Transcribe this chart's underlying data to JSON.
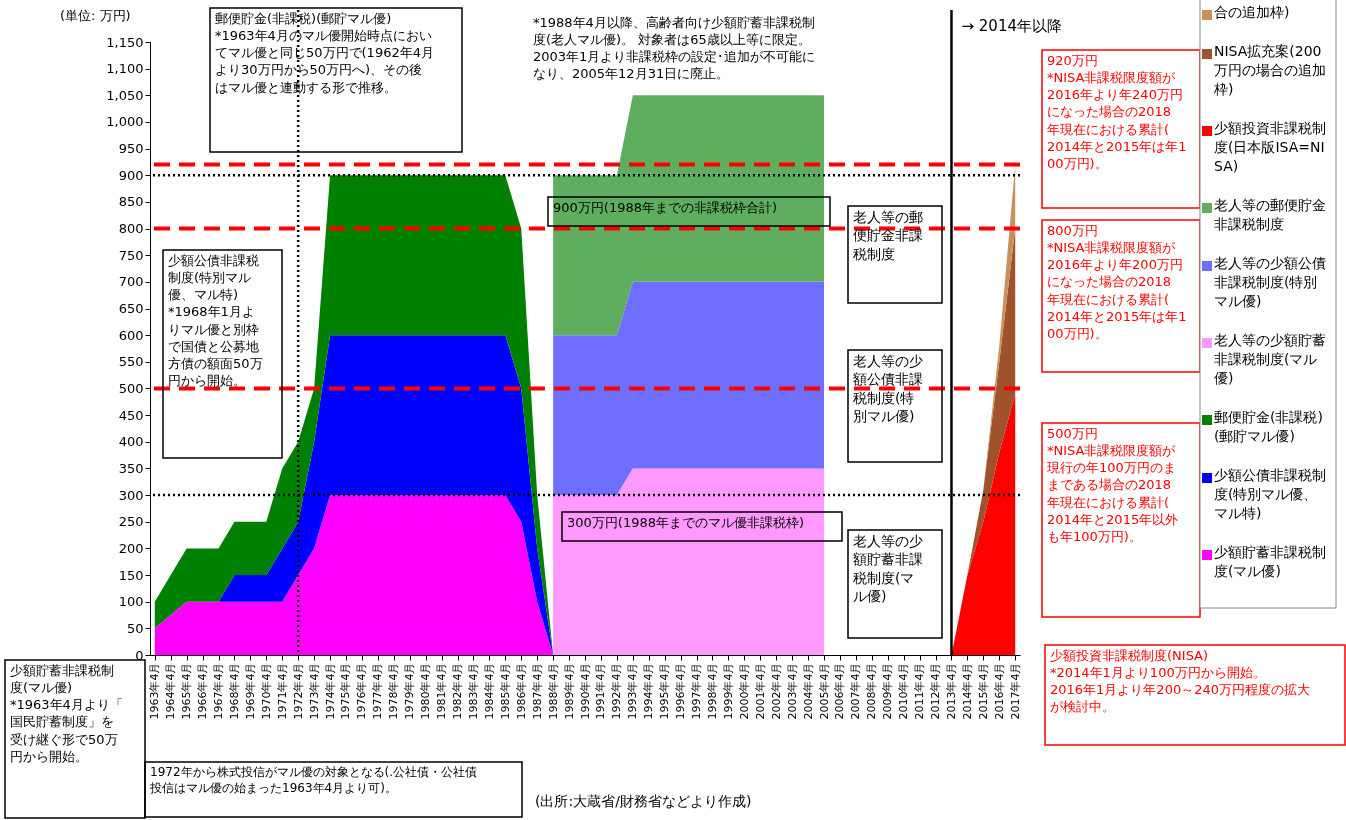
{
  "chart_data": {
    "type": "area",
    "stacked": true,
    "legend": "right",
    "ylabel": "(単位: 万円)",
    "categories": [
      "1963年4月",
      "1964年4月",
      "1965年4月",
      "1966年4月",
      "1967年4月",
      "1968年4月",
      "1969年4月",
      "1970年4月",
      "1971年4月",
      "1972年4月",
      "1973年4月",
      "1974年4月",
      "1975年4月",
      "1976年4月",
      "1977年4月",
      "1978年4月",
      "1979年4月",
      "1980年4月",
      "1981年4月",
      "1982年4月",
      "1983年4月",
      "1984年4月",
      "1985年4月",
      "1986年4月",
      "1987年4月",
      "1988年4月",
      "1989年4月",
      "1990年4月",
      "1991年4月",
      "1992年4月",
      "1993年4月",
      "1994年4月",
      "1995年4月",
      "1996年4月",
      "1997年4月",
      "1998年4月",
      "1999年4月",
      "2000年4月",
      "2001年4月",
      "2002年4月",
      "2003年4月",
      "2004年4月",
      "2005年4月",
      "2006年4月",
      "2007年4月",
      "2008年4月",
      "2009年4月",
      "2010年4月",
      "2011年4月",
      "2012年4月",
      "2013年4月",
      "2014年4月",
      "2015年4月",
      "2016年4月",
      "2017年4月"
    ],
    "series": [
      {
        "name": "少額貯蓄非課税制度(マル優)",
        "color": "#ff00ff",
        "values": [
          50,
          75,
          100,
          100,
          100,
          100,
          100,
          100,
          100,
          150,
          200,
          300,
          300,
          300,
          300,
          300,
          300,
          300,
          300,
          300,
          300,
          300,
          300,
          250,
          100,
          0,
          null,
          null,
          null,
          null,
          null,
          null,
          null,
          null,
          null,
          null,
          null,
          null,
          null,
          null,
          null,
          null,
          null,
          null,
          null,
          null,
          null,
          null,
          null,
          null,
          null,
          null,
          null,
          null,
          null
        ]
      },
      {
        "name": "少額公債非課税制度(特別マル優、マル特)",
        "color": "#0000ff",
        "values": [
          null,
          null,
          null,
          null,
          0,
          50,
          50,
          50,
          100,
          100,
          200,
          300,
          300,
          300,
          300,
          300,
          300,
          300,
          300,
          300,
          300,
          300,
          300,
          250,
          100,
          0,
          null,
          null,
          null,
          null,
          null,
          null,
          null,
          null,
          null,
          null,
          null,
          null,
          null,
          null,
          null,
          null,
          null,
          null,
          null,
          null,
          null,
          null,
          null,
          null,
          null,
          null,
          null,
          null,
          null
        ]
      },
      {
        "name": "郵便貯金(非課税)(郵貯マル優)",
        "color": "#008000",
        "values": [
          50,
          75,
          100,
          100,
          100,
          100,
          100,
          100,
          150,
          150,
          100,
          300,
          300,
          300,
          300,
          300,
          300,
          300,
          300,
          300,
          300,
          300,
          300,
          300,
          100,
          0,
          null,
          null,
          null,
          null,
          null,
          null,
          null,
          null,
          null,
          null,
          null,
          null,
          null,
          null,
          null,
          null,
          null,
          null,
          null,
          null,
          null,
          null,
          null,
          null,
          null,
          null,
          null,
          null,
          null
        ]
      },
      {
        "name": "老人等の少額貯蓄非課税制度(マル優)",
        "color": "#ff99ff",
        "values": [
          null,
          null,
          null,
          null,
          null,
          null,
          null,
          null,
          null,
          null,
          null,
          null,
          null,
          null,
          null,
          null,
          null,
          null,
          null,
          null,
          null,
          null,
          null,
          null,
          null,
          300,
          300,
          300,
          300,
          300,
          350,
          350,
          350,
          350,
          350,
          350,
          350,
          350,
          350,
          350,
          350,
          350,
          350,
          null,
          null,
          null,
          null,
          null,
          null,
          null,
          null,
          null,
          null,
          null,
          null
        ]
      },
      {
        "name": "老人等の少額公債非課税制度(特別マル優)",
        "color": "#6f6fff",
        "values": [
          null,
          null,
          null,
          null,
          null,
          null,
          null,
          null,
          null,
          null,
          null,
          null,
          null,
          null,
          null,
          null,
          null,
          null,
          null,
          null,
          null,
          null,
          null,
          null,
          null,
          300,
          300,
          300,
          300,
          300,
          350,
          350,
          350,
          350,
          350,
          350,
          350,
          350,
          350,
          350,
          350,
          350,
          350,
          null,
          null,
          null,
          null,
          null,
          null,
          null,
          null,
          null,
          null,
          null,
          null
        ]
      },
      {
        "name": "老人等の郵便貯金非課税制度",
        "color": "#5fae5f",
        "values": [
          null,
          null,
          null,
          null,
          null,
          null,
          null,
          null,
          null,
          null,
          null,
          null,
          null,
          null,
          null,
          null,
          null,
          null,
          null,
          null,
          null,
          null,
          null,
          null,
          null,
          300,
          300,
          300,
          300,
          300,
          350,
          350,
          350,
          350,
          350,
          350,
          350,
          350,
          350,
          350,
          350,
          350,
          350,
          null,
          null,
          null,
          null,
          null,
          null,
          null,
          null,
          null,
          null,
          null,
          null
        ]
      },
      {
        "name": "少額投資非課税制度(日本版ISA=NISA)",
        "color": "#ff0000",
        "values": [
          null,
          null,
          null,
          null,
          null,
          null,
          null,
          null,
          null,
          null,
          null,
          null,
          null,
          null,
          null,
          null,
          null,
          null,
          null,
          null,
          null,
          null,
          null,
          null,
          null,
          null,
          null,
          null,
          null,
          null,
          null,
          null,
          null,
          null,
          null,
          null,
          null,
          null,
          null,
          null,
          null,
          null,
          null,
          null,
          null,
          null,
          null,
          null,
          null,
          null,
          0,
          150,
          250,
          380,
          490
        ]
      },
      {
        "name": "NISA拡充案(200万円の場合の追加枠)",
        "color": "#a0522d",
        "values": [
          null,
          null,
          null,
          null,
          null,
          null,
          null,
          null,
          null,
          null,
          null,
          null,
          null,
          null,
          null,
          null,
          null,
          null,
          null,
          null,
          null,
          null,
          null,
          null,
          null,
          null,
          null,
          null,
          null,
          null,
          null,
          null,
          null,
          null,
          null,
          null,
          null,
          null,
          null,
          null,
          null,
          null,
          null,
          null,
          null,
          null,
          null,
          null,
          null,
          null,
          null,
          0,
          60,
          170,
          310
        ]
      },
      {
        "name": "合の追加枠)",
        "color": "#c8915a",
        "values": [
          null,
          null,
          null,
          null,
          null,
          null,
          null,
          null,
          null,
          null,
          null,
          null,
          null,
          null,
          null,
          null,
          null,
          null,
          null,
          null,
          null,
          null,
          null,
          null,
          null,
          null,
          null,
          null,
          null,
          null,
          null,
          null,
          null,
          null,
          null,
          null,
          null,
          null,
          null,
          null,
          null,
          null,
          null,
          null,
          null,
          null,
          null,
          null,
          null,
          null,
          null,
          null,
          0,
          30,
          120
        ]
      }
    ],
    "ylim": [
      0,
      1150
    ],
    "yticks": [
      0,
      50,
      100,
      150,
      200,
      250,
      300,
      350,
      400,
      450,
      500,
      550,
      600,
      650,
      700,
      750,
      800,
      850,
      900,
      950,
      {
        "value": 1000,
        "label": "1,000"
      },
      {
        "value": 1050,
        "label": "1,050"
      },
      {
        "value": 1100,
        "label": "1,100"
      },
      {
        "value": 1150,
        "label": "1,150"
      }
    ],
    "ref_lines": [
      {
        "axis": "y",
        "value": 920,
        "color": "#ff0000",
        "line_style": "dashed"
      },
      {
        "axis": "y",
        "value": 800,
        "color": "#ff0000",
        "line_style": "dashed"
      },
      {
        "axis": "y",
        "value": 500,
        "color": "#ff0000",
        "line_style": "dashed"
      },
      {
        "axis": "y",
        "value": 900,
        "color": "#000000",
        "line_style": "dotted"
      },
      {
        "axis": "y",
        "value": 300,
        "color": "#000000",
        "line_style": "dotted"
      },
      {
        "axis": "x",
        "value": "1972年4月",
        "color": "#000000",
        "line_style": "dotted"
      },
      {
        "axis": "x",
        "value": "2013年4月",
        "color": "#000000",
        "line_style": "solid",
        "label": "→ 2014年以降"
      }
    ],
    "annotations": [
      "郵便貯金(非課税)(郵貯マル優)\n\n*1963年4月のマル優開始時点においてマル優と同じ50万円で(1962年4月より30万円から50万円へ)、その後はマル優と連動する形で推移。",
      "*1988年4月以降、高齢者向け少額貯蓄非課税制度(老人マル優)。 対象者は65歳以上等に限定。2003年1月より非課税枠の設定･追加が不可能になり、2005年12月31日に廃止。",
      "920万円\n*NISA非課税限度額が2016年より年240万円になった場合の2018年現在における累計(2014年と2015年は年100万円)。",
      "800万円\n*NISA非課税限度額が2016年より年200万円になった場合の2018年現在における累計(2014年と2015年は年100万円)。",
      "500万円\n*NISA非課税限度額が現行の年100万円のままである場合の2018年現在における累計(2014年と2015年以外も年100万円)。",
      "少額投資非課税制度(NISA)\n*2014年1月より100万円から開始。\n2016年1月より年200～240万円程度の拡大が検討中。",
      "900万円(1988年までの非課税枠合計)",
      "老人等の郵便貯金非課税制度",
      "少額公債非課税制度(特別マル優、マル特)\n\n*1968年1月よりマル優と別枠で国債と公募地方債の額面50万円から開始。",
      "老人等の少額公債非課税制度(特別マル優)",
      "300万円(1988年までのマル優非課税枠)",
      "老人等の少額貯蓄非課税制度(マル優)",
      "少額貯蓄非課税制度(マル優)\n\n*1963年4月より「国民貯蓄制度」を受け継ぐ形で50万円から開始。",
      "1972年から株式投信がマル優の対象となる(.公社債・公社債投信はマル優の始まった1963年4月より可)。",
      "(出所:大蔵省/財務省などより作成)"
    ]
  }
}
